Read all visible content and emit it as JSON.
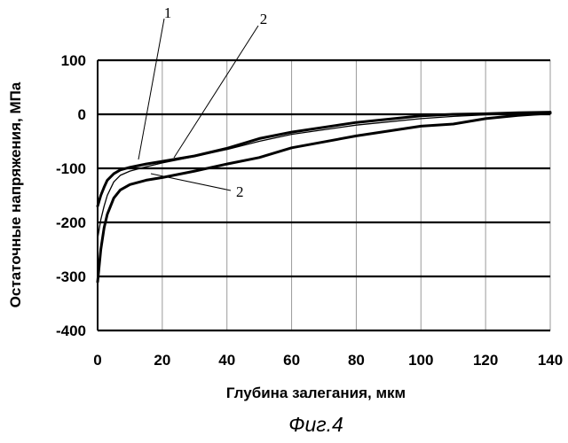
{
  "chart_data": {
    "type": "line",
    "xlabel": "Глубина залегания, мкм",
    "ylabel": "Остаточные напряжения, МПа",
    "xlim": [
      0,
      140
    ],
    "ylim": [
      -400,
      100
    ],
    "x_ticks": [
      0,
      20,
      40,
      60,
      80,
      100,
      120,
      140
    ],
    "y_ticks": [
      100,
      0,
      -100,
      -200,
      -300,
      -400
    ],
    "y_tick_labels": [
      "100",
      "0",
      "-100",
      "-200",
      "-300",
      "-400"
    ],
    "grid": "horizontal",
    "vertical_grid": true,
    "series": [
      {
        "name": "1",
        "stroke": "thin",
        "x": [
          0,
          1,
          2,
          3,
          5,
          7,
          10,
          15,
          20,
          30,
          40,
          50,
          60,
          80,
          100,
          110,
          120,
          130,
          140
        ],
        "y": [
          -230,
          -195,
          -170,
          -150,
          -125,
          -113,
          -105,
          -97,
          -90,
          -78,
          -65,
          -50,
          -37,
          -20,
          -8,
          -4,
          -1,
          1,
          1
        ]
      },
      {
        "name": "2",
        "stroke": "thick",
        "x": [
          0,
          1,
          2,
          3,
          5,
          7,
          10,
          15,
          20,
          30,
          40,
          50,
          60,
          80,
          100,
          110,
          120,
          130,
          140
        ],
        "y": [
          -170,
          -150,
          -135,
          -122,
          -110,
          -103,
          -98,
          -92,
          -87,
          -77,
          -63,
          -45,
          -33,
          -15,
          -3,
          0,
          1,
          3,
          4
        ]
      },
      {
        "name": "2",
        "stroke": "thick",
        "x": [
          0,
          1,
          2,
          3,
          5,
          7,
          10,
          15,
          20,
          30,
          40,
          50,
          60,
          80,
          100,
          110,
          120,
          130,
          140
        ],
        "y": [
          -310,
          -250,
          -210,
          -185,
          -155,
          -140,
          -130,
          -122,
          -117,
          -105,
          -92,
          -80,
          -62,
          -40,
          -22,
          -18,
          -8,
          -2,
          2
        ]
      }
    ],
    "annotations": [
      {
        "text": "1",
        "series_index": 0
      },
      {
        "text": "2",
        "series_index": 1
      },
      {
        "text": "2",
        "series_index": 2
      }
    ]
  },
  "figure_caption": "Фиг.4"
}
